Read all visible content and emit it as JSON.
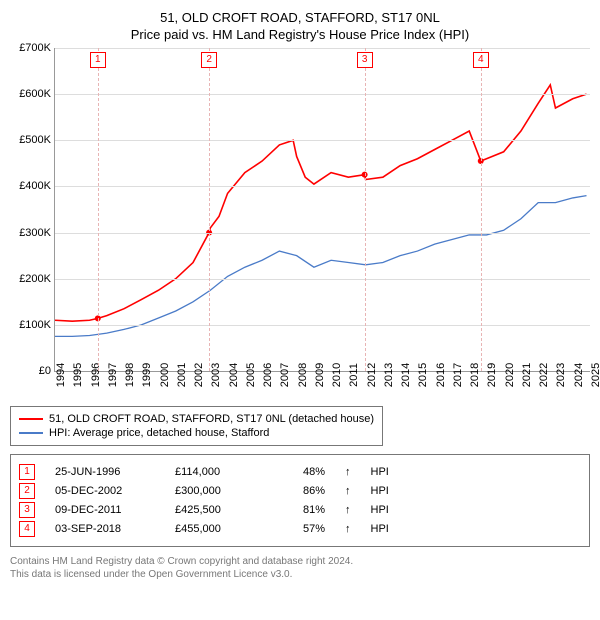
{
  "title_line1": "51, OLD CROFT ROAD, STAFFORD, ST17 0NL",
  "title_line2": "Price paid vs. HM Land Registry's House Price Index (HPI)",
  "chart": {
    "type": "line",
    "background_color": "#ffffff",
    "grid_color": "#dddddd",
    "axis_color": "#999999",
    "y": {
      "min": 0,
      "max": 700000,
      "step": 100000,
      "labels": [
        "£0",
        "£100K",
        "£200K",
        "£300K",
        "£400K",
        "£500K",
        "£600K",
        "£700K"
      ]
    },
    "x": {
      "min": 1994,
      "max": 2025,
      "step": 1,
      "labels": [
        "1994",
        "1995",
        "1996",
        "1997",
        "1998",
        "1999",
        "2000",
        "2001",
        "2002",
        "2003",
        "2004",
        "2005",
        "2006",
        "2007",
        "2008",
        "2009",
        "2010",
        "2011",
        "2012",
        "2013",
        "2014",
        "2015",
        "2016",
        "2017",
        "2018",
        "2019",
        "2020",
        "2021",
        "2022",
        "2023",
        "2024",
        "2025"
      ]
    },
    "series": [
      {
        "id": "price_paid",
        "label": "51, OLD CROFT ROAD, STAFFORD, ST17 0NL (detached house)",
        "color": "#ff0000",
        "width": 1.6,
        "points": [
          [
            1994,
            110000
          ],
          [
            1995,
            108000
          ],
          [
            1996,
            110000
          ],
          [
            1996.48,
            114000
          ],
          [
            1997,
            120000
          ],
          [
            1998,
            135000
          ],
          [
            1999,
            155000
          ],
          [
            2000,
            175000
          ],
          [
            2001,
            200000
          ],
          [
            2002,
            235000
          ],
          [
            2002.93,
            300000
          ],
          [
            2003,
            310000
          ],
          [
            2003.5,
            335000
          ],
          [
            2004,
            385000
          ],
          [
            2005,
            430000
          ],
          [
            2006,
            455000
          ],
          [
            2007,
            490000
          ],
          [
            2007.8,
            500000
          ],
          [
            2008,
            465000
          ],
          [
            2008.5,
            420000
          ],
          [
            2009,
            405000
          ],
          [
            2010,
            430000
          ],
          [
            2011,
            420000
          ],
          [
            2011.94,
            425500
          ],
          [
            2012,
            415000
          ],
          [
            2013,
            420000
          ],
          [
            2014,
            445000
          ],
          [
            2015,
            460000
          ],
          [
            2016,
            480000
          ],
          [
            2017,
            500000
          ],
          [
            2018,
            520000
          ],
          [
            2018.67,
            455000
          ],
          [
            2019,
            460000
          ],
          [
            2020,
            475000
          ],
          [
            2021,
            520000
          ],
          [
            2022,
            580000
          ],
          [
            2022.7,
            620000
          ],
          [
            2023,
            570000
          ],
          [
            2024,
            590000
          ],
          [
            2024.8,
            600000
          ]
        ]
      },
      {
        "id": "hpi",
        "label": "HPI: Average price, detached house, Stafford",
        "color": "#4a7bc8",
        "width": 1.3,
        "points": [
          [
            1994,
            75000
          ],
          [
            1995,
            75000
          ],
          [
            1996,
            77000
          ],
          [
            1997,
            82000
          ],
          [
            1998,
            90000
          ],
          [
            1999,
            100000
          ],
          [
            2000,
            115000
          ],
          [
            2001,
            130000
          ],
          [
            2002,
            150000
          ],
          [
            2003,
            175000
          ],
          [
            2004,
            205000
          ],
          [
            2005,
            225000
          ],
          [
            2006,
            240000
          ],
          [
            2007,
            260000
          ],
          [
            2008,
            250000
          ],
          [
            2009,
            225000
          ],
          [
            2010,
            240000
          ],
          [
            2011,
            235000
          ],
          [
            2012,
            230000
          ],
          [
            2013,
            235000
          ],
          [
            2014,
            250000
          ],
          [
            2015,
            260000
          ],
          [
            2016,
            275000
          ],
          [
            2017,
            285000
          ],
          [
            2018,
            295000
          ],
          [
            2019,
            295000
          ],
          [
            2020,
            305000
          ],
          [
            2021,
            330000
          ],
          [
            2022,
            365000
          ],
          [
            2023,
            365000
          ],
          [
            2024,
            375000
          ],
          [
            2024.8,
            380000
          ]
        ]
      }
    ],
    "markers": [
      {
        "n": "1",
        "year": 1996.48,
        "date": "25-JUN-1996",
        "price": "£114,000",
        "pct": "48%",
        "arrow": "↑",
        "label": "HPI"
      },
      {
        "n": "2",
        "year": 2002.93,
        "date": "05-DEC-2002",
        "price": "£300,000",
        "pct": "86%",
        "arrow": "↑",
        "label": "HPI"
      },
      {
        "n": "3",
        "year": 2011.94,
        "date": "09-DEC-2011",
        "price": "£425,500",
        "pct": "81%",
        "arrow": "↑",
        "label": "HPI"
      },
      {
        "n": "4",
        "year": 2018.67,
        "date": "03-SEP-2018",
        "price": "£455,000",
        "pct": "57%",
        "arrow": "↑",
        "label": "HPI"
      }
    ],
    "marker_line_color": "#e8b4b4",
    "marker_box_border": "#ff0000",
    "marker_box_text": "#ff0000"
  },
  "legend": {
    "items": [
      {
        "color": "#ff0000",
        "label": "51, OLD CROFT ROAD, STAFFORD, ST17 0NL (detached house)"
      },
      {
        "color": "#4a7bc8",
        "label": "HPI: Average price, detached house, Stafford"
      }
    ]
  },
  "footnote_line1": "Contains HM Land Registry data © Crown copyright and database right 2024.",
  "footnote_line2": "This data is licensed under the Open Government Licence v3.0."
}
